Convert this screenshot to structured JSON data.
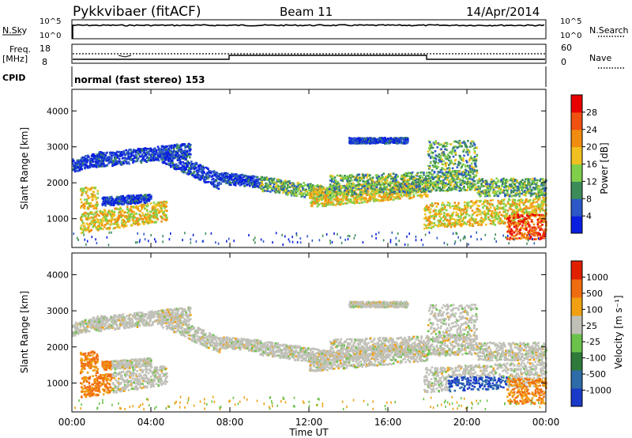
{
  "header": {
    "station": "Pykkvibaer (fitACF)",
    "beam": "Beam 11",
    "date": "14/Apr/2014"
  },
  "noise_panel": {
    "left_label": "N.Sky",
    "right_label": "N.Search",
    "left_ticks": [
      "10^5",
      "10^0"
    ],
    "right_ticks": [
      "10^5",
      "10^0"
    ]
  },
  "freq_panel": {
    "left_label_1": "Freq.",
    "left_label_2": "[MHz]",
    "right_label": "Nave",
    "left_ticks": [
      "18",
      "8"
    ],
    "right_ticks": [
      "60",
      "0"
    ]
  },
  "cpid_panel": {
    "label": "CPID",
    "mode_text": "normal (fast stereo) 153"
  },
  "colors": {
    "power_scale": [
      "#0a1ee0",
      "#2c58c8",
      "#3c8c5a",
      "#7fcf4a",
      "#f0c020",
      "#f08c10",
      "#f05010",
      "#e80000"
    ],
    "velocity_scale": [
      "#1a3ac8",
      "#2e6ca8",
      "#2e7a3a",
      "#6ac24a",
      "#c0c0b8",
      "#f0a010",
      "#f06c10",
      "#e02000"
    ]
  },
  "chart_data": [
    {
      "type": "heatmap",
      "name": "power",
      "ylabel": "Slant Range [km]",
      "ylim": [
        200,
        4600
      ],
      "yticks": [
        "1000",
        "2000",
        "3000",
        "4000"
      ],
      "colorbar_label": "Power [dB]",
      "colorbar_ticks": [
        "4",
        "8",
        "12",
        "16",
        "20",
        "24",
        "28"
      ]
    },
    {
      "type": "heatmap",
      "name": "velocity",
      "ylabel": "Slant Range [km]",
      "ylim": [
        200,
        4600
      ],
      "yticks": [
        "1000",
        "2000",
        "3000",
        "4000"
      ],
      "colorbar_label": "Velocity [m s⁻¹]",
      "colorbar_ticks": [
        "1000",
        "500",
        "100",
        "25",
        "-25",
        "-100",
        "-500",
        "-1000"
      ]
    }
  ],
  "xaxis": {
    "label": "Time UT",
    "ticks": [
      "00:00",
      "04:00",
      "08:00",
      "12:00",
      "16:00",
      "20:00",
      "00:00"
    ]
  }
}
